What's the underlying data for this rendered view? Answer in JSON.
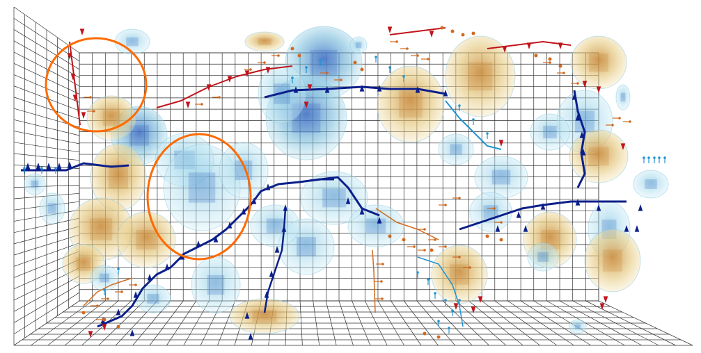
{
  "scene": {
    "background": "#ffffff",
    "grid_color": "#2f2f2f",
    "colors": {
      "blue_blob_fill": "#6fb7d8",
      "blue_blob_core": "#3f6fc4",
      "tan_blob_fill": "#e4c77a",
      "tan_blob_core": "#c98a3a",
      "dark_blue_path": "#0b1f8a",
      "red_marker": "#c0141b",
      "orange_marker": "#d2691e",
      "light_blue_marker": "#1f93d1",
      "highlight_circle": "#ff6a00"
    },
    "annotations": [
      {
        "type": "highlight-circle",
        "region": "upper-left wall"
      },
      {
        "type": "highlight-circle",
        "region": "left-center"
      }
    ]
  }
}
